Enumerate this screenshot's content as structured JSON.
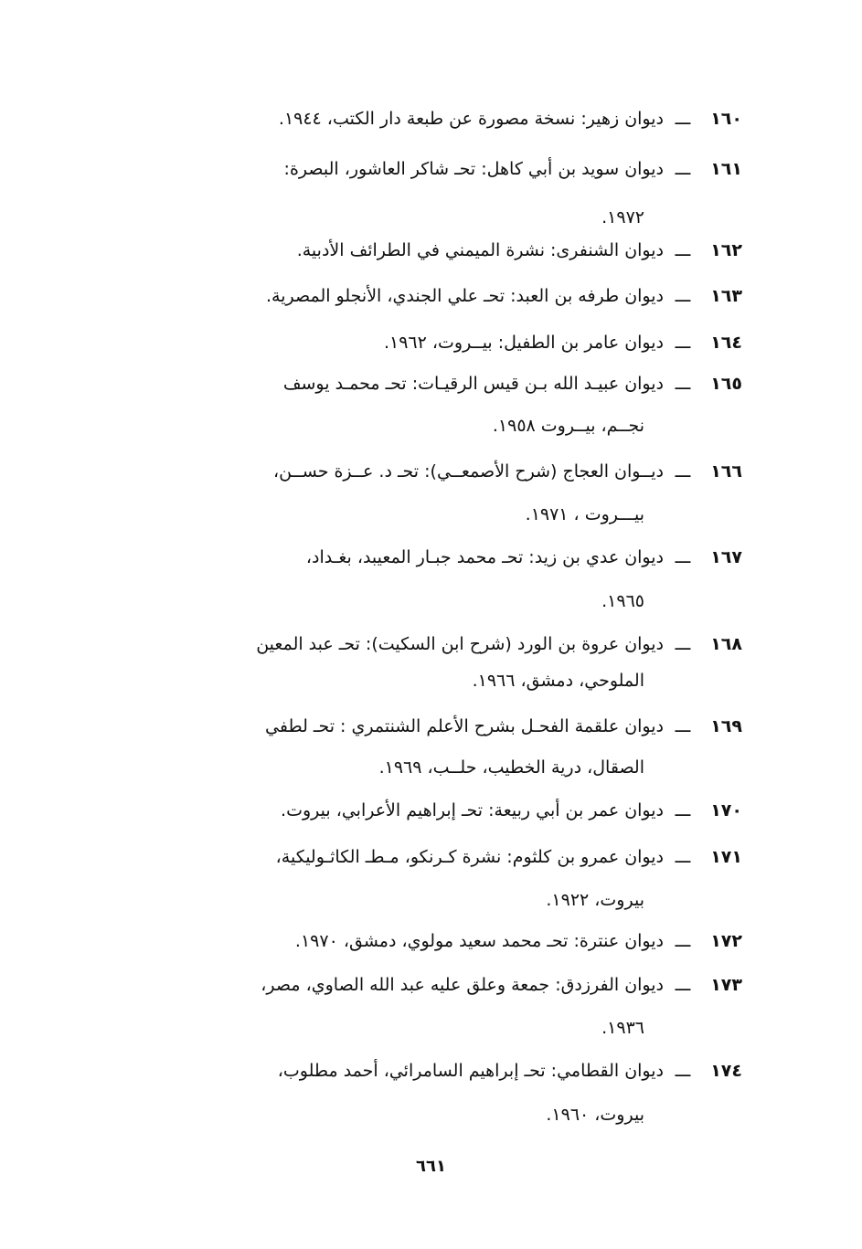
{
  "entries": [
    {
      "num": "١٦٠",
      "lines": [
        "ديوان زهير: نسخة مصورة عن طبعة دار الكتب، ١٩٤٤."
      ]
    },
    {
      "num": "١٦١",
      "lines": [
        "ديوان سويد بن أبي كاهل: تحـ شاكر العاشور، البصرة:",
        "١٩٧٢."
      ]
    },
    {
      "num": "١٦٢",
      "lines": [
        "ديوان الشنفرى: نشرة الميمني في الطرائف الأدبية."
      ]
    },
    {
      "num": "١٦٣",
      "lines": [
        "ديوان طرفه بن العبد: تحـ علي الجندي، الأنجلو المصرية."
      ]
    },
    {
      "num": "١٦٤",
      "lines": [
        "ديوان عامر بن الطفيل: بيــروت، ١٩٦٢."
      ]
    },
    {
      "num": "١٦٥",
      "lines": [
        "ديوان عبيـد الله بـن قيس الرقيـات: تحـ محمـد يوسف",
        "نجــم، بيــروت ١٩٥٨."
      ]
    },
    {
      "num": "١٦٦",
      "lines": [
        "ديــوان العجاج (شرح الأصمعــي): تحـ د. عــزة حســن،",
        "بيـــروت ، ١٩٧١."
      ]
    },
    {
      "num": "١٦٧",
      "lines": [
        "ديوان عدي بن زيد: تحـ محمد جبـار المعيبد، بغـداد،",
        "١٩٦٥."
      ]
    },
    {
      "num": "١٦٨",
      "lines": [
        "ديوان عروة بن الورد (شرح ابن السكيت): تحـ عبد المعين",
        "الملوحي، دمشق، ١٩٦٦."
      ]
    },
    {
      "num": "١٦٩",
      "lines": [
        "ديوان علقمة الفحـل بشرح الأعلم الشنتمري : تحـ لطفي",
        "الصقال، درية الخطيب، حلــب، ١٩٦٩."
      ]
    },
    {
      "num": "١٧٠",
      "lines": [
        "ديوان عمر بن أبي ربيعة: تحـ إبراهيم الأعرابي، بيروت."
      ]
    },
    {
      "num": "١٧١",
      "lines": [
        "ديوان عمرو بن كلثوم: نشرة كـرنكو، مـطـ الكاثـوليكية،",
        "بيروت، ١٩٢٢."
      ]
    },
    {
      "num": "١٧٢",
      "lines": [
        "ديوان عنترة: تحـ محمد سعيد مولوي، دمشق، ١٩٧٠."
      ]
    },
    {
      "num": "١٧٣",
      "lines": [
        "ديوان الفرزدق: جمعة وعلق عليه عبد الله الصاوي، مصر،",
        "١٩٣٦."
      ]
    },
    {
      "num": "١٧٤",
      "lines": [
        "ديوان القطامي: تحـ إبراهيم السامرائي، أحمد مطلوب،",
        "بيروت، ١٩٦٠."
      ]
    }
  ],
  "dash": "ـــ",
  "page_number": "٦٦١"
}
